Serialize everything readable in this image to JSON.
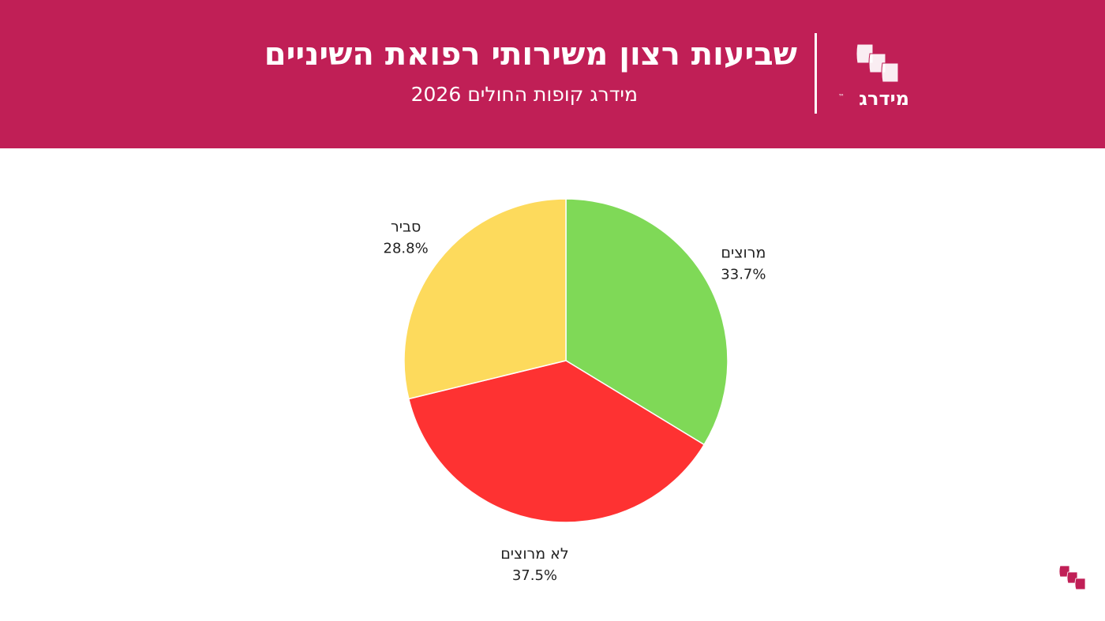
{
  "header": {
    "title": "שביעות רצון משירותי רפואת השיניים",
    "subtitle": "מידרג קופות החולים 2026",
    "logo_text": "מידרג",
    "logo_tm": "™",
    "background_color": "#c01f56"
  },
  "chart_data": {
    "type": "pie",
    "title": "",
    "start_angle_deg": 0,
    "direction": "clockwise",
    "slices": [
      {
        "label": "מרוצים",
        "value": 33.7,
        "display": "33.7%",
        "color": "#7fd957"
      },
      {
        "label": "לא מרוצים",
        "value": 37.5,
        "display": "37.5%",
        "color": "#fe3232"
      },
      {
        "label": "סביר",
        "value": 28.8,
        "display": "28.8%",
        "color": "#fdda5c"
      }
    ]
  },
  "icons": {
    "header_logo": "midrag-flags-icon",
    "corner_logo": "midrag-flags-icon",
    "corner_color": "#c01f56"
  }
}
